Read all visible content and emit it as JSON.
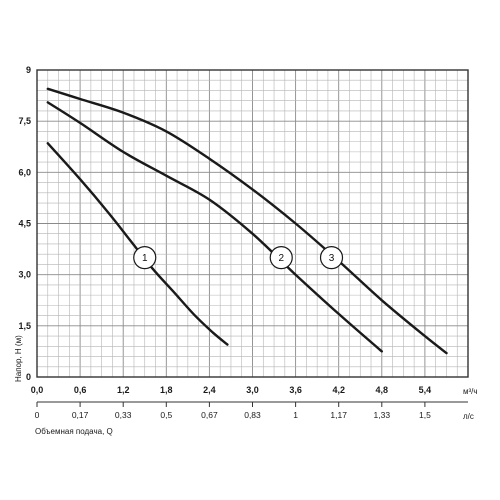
{
  "chart_data": {
    "type": "line",
    "xlabel": "Объемная подача, Q",
    "ylabel": "Напор, H (м)",
    "x_unit": "м³/ч",
    "x2_unit": "л/с",
    "xlim": [
      0,
      6.0
    ],
    "ylim": [
      0,
      9
    ],
    "grid": true,
    "x_ticks": [
      "0,0",
      "0,6",
      "1,2",
      "1,8",
      "2,4",
      "3,0",
      "3,6",
      "4,2",
      "4,8",
      "5,4"
    ],
    "x2_ticks": [
      "0",
      "0,17",
      "0,33",
      "0,5",
      "0,67",
      "0,83",
      "1",
      "1,17",
      "1,33",
      "1,5"
    ],
    "y_ticks": [
      "9",
      "7,5",
      "6,0",
      "4,5",
      "3,0",
      "1,5",
      "0"
    ],
    "series": [
      {
        "name": "1",
        "x": [
          0.15,
          0.6,
          1.0,
          1.3,
          1.6,
          1.9,
          2.2,
          2.45,
          2.65
        ],
        "y": [
          6.85,
          5.8,
          4.8,
          4.0,
          3.2,
          2.5,
          1.8,
          1.3,
          0.95
        ]
      },
      {
        "name": "2",
        "x": [
          0.15,
          0.6,
          1.2,
          1.8,
          2.4,
          3.0,
          3.6,
          4.2,
          4.8
        ],
        "y": [
          8.05,
          7.45,
          6.6,
          5.9,
          5.2,
          4.2,
          3.0,
          1.85,
          0.75
        ]
      },
      {
        "name": "3",
        "x": [
          0.15,
          0.6,
          1.2,
          1.8,
          2.4,
          3.0,
          3.6,
          4.2,
          4.8,
          5.4,
          5.7
        ],
        "y": [
          8.45,
          8.15,
          7.75,
          7.2,
          6.4,
          5.5,
          4.5,
          3.4,
          2.25,
          1.2,
          0.7
        ]
      }
    ]
  }
}
